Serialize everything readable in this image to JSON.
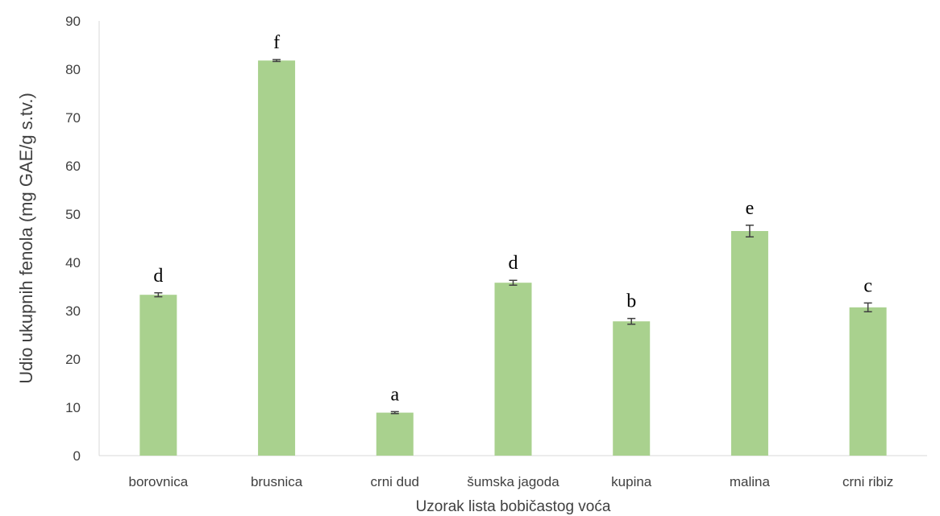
{
  "chart_data": {
    "type": "bar",
    "title": "",
    "xlabel": "Uzorak lista bobičastog voća",
    "ylabel": "Udio ukupnih fenola (mg GAE/g s.tv.)",
    "ylim": [
      0,
      90
    ],
    "yticks": [
      0,
      10,
      20,
      30,
      40,
      50,
      60,
      70,
      80,
      90
    ],
    "grid": false,
    "legend": "none",
    "bar_color": "#a9d18e",
    "error_color": "#404040",
    "categories": [
      "borovnica",
      "brusnica",
      "crni dud",
      "šumska jagoda",
      "kupina",
      "malina",
      "crni ribiz"
    ],
    "values": [
      33.3,
      81.8,
      8.9,
      35.8,
      27.8,
      46.5,
      30.7
    ],
    "errors": [
      0.4,
      0.2,
      0.2,
      0.5,
      0.6,
      1.2,
      0.9
    ],
    "significance_labels": [
      "d",
      "f",
      "a",
      "d",
      "b",
      "e",
      "c"
    ]
  }
}
